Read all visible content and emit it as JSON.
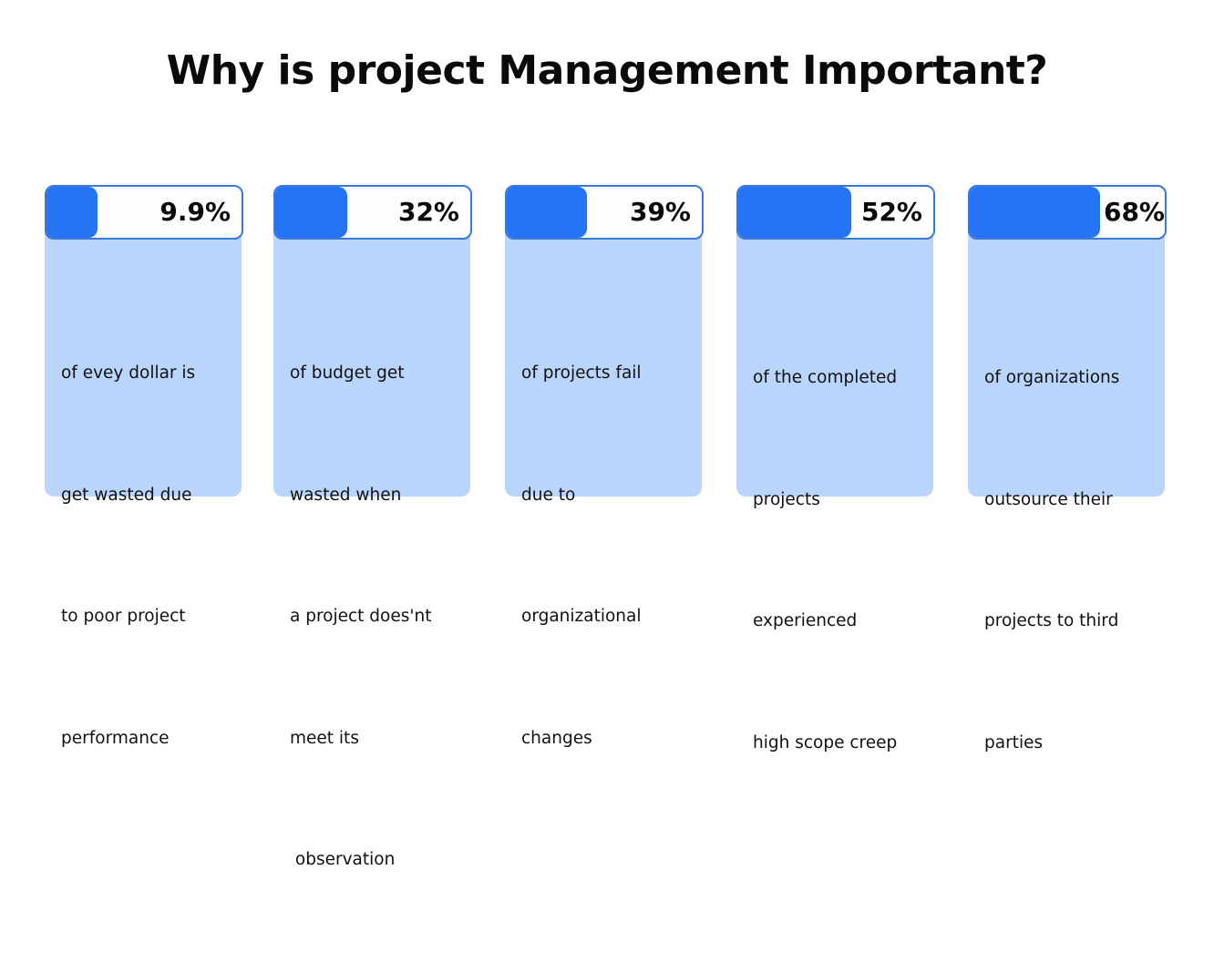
{
  "title": "Why is project Management Important?",
  "colors": {
    "bar_fill": "#2474f5",
    "bar_border": "#3b78d8",
    "card_body": "#b9d5fb",
    "bar_background": "#fdfdfd"
  },
  "cards": [
    {
      "value": "9.9%",
      "fill_percent": 26,
      "lines": [
        "of evey dollar is",
        "get wasted due",
        "to poor project",
        "performance"
      ]
    },
    {
      "value": "32%",
      "fill_percent": 37,
      "lines": [
        "of budget get",
        "wasted when",
        "a project does'nt",
        "meet its",
        " observation"
      ]
    },
    {
      "value": "39%",
      "fill_percent": 41,
      "lines": [
        "of projects fail",
        "due to",
        "organizational",
        "changes"
      ]
    },
    {
      "value": "52%",
      "fill_percent": 58,
      "lines": [
        "of the completed",
        "projects",
        "experienced",
        "high scope creep"
      ]
    },
    {
      "value": "68%",
      "fill_percent": 67,
      "lines": [
        "of organizations",
        "outsource their",
        "projects to third",
        "parties"
      ]
    }
  ]
}
